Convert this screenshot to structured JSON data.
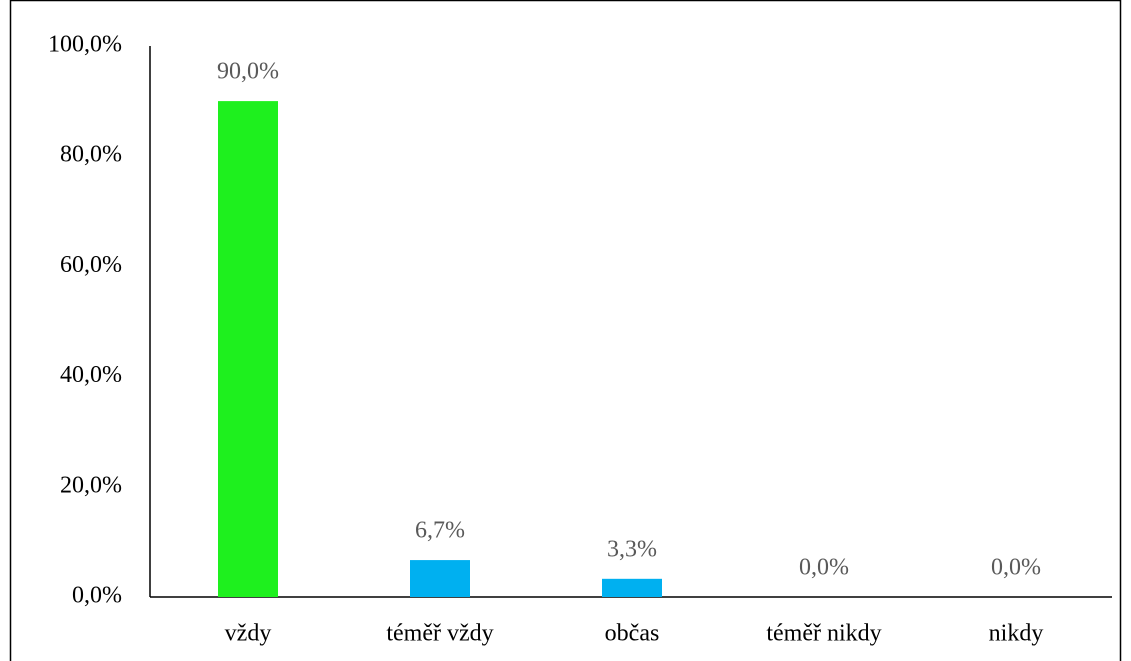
{
  "chart_data": {
    "type": "bar",
    "categories": [
      "vždy",
      "téměř vždy",
      "občas",
      "téměř nikdy",
      "nikdy"
    ],
    "values": [
      90,
      6.7,
      3.3,
      0,
      0
    ],
    "value_labels": [
      "90,0%",
      "6,7%",
      "3,3%",
      "0,0%",
      "0,0%"
    ],
    "colors": [
      "#1ef01e",
      "#00b0f0",
      "#00b0f0",
      "#00b0f0",
      "#00b0f0"
    ],
    "ylim": [
      0,
      100
    ],
    "yticks": [
      {
        "value": 0,
        "label": "0,0%"
      },
      {
        "value": 20,
        "label": "20,0%"
      },
      {
        "value": 40,
        "label": "40,0%"
      },
      {
        "value": 60,
        "label": "60,0%"
      },
      {
        "value": 80,
        "label": "80,0%"
      },
      {
        "value": 100,
        "label": "100,0%"
      }
    ],
    "grid": false
  }
}
